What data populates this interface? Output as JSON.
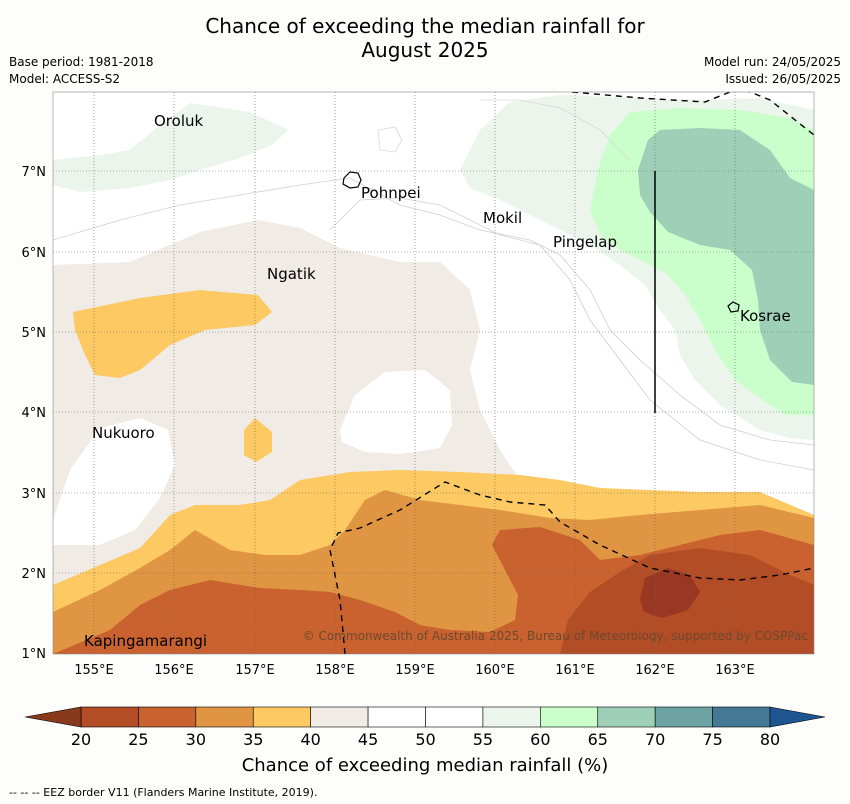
{
  "title": {
    "line1": "Chance of exceeding the median rainfall for",
    "line2": "August 2025"
  },
  "meta": {
    "base_period": "Base period: 1981-2018",
    "model": "Model: ACCESS-S2",
    "model_run": "Model run: 24/05/2025",
    "issued": "Issued: 26/05/2025"
  },
  "map": {
    "lon_labels": [
      "155°E",
      "156°E",
      "157°E",
      "158°E",
      "159°E",
      "160°E",
      "161°E",
      "162°E",
      "163°E"
    ],
    "lat_labels": [
      "7°N",
      "6°N",
      "5°N",
      "4°N",
      "3°N",
      "2°N",
      "1°N"
    ],
    "places": [
      {
        "name": "Oroluk"
      },
      {
        "name": "Pohnpei"
      },
      {
        "name": "Mokil"
      },
      {
        "name": "Pingelap"
      },
      {
        "name": "Ngatik"
      },
      {
        "name": "Kosrae"
      },
      {
        "name": "Nukuoro"
      },
      {
        "name": "Kapingamarangi"
      }
    ],
    "copyright": "© Commonwealth of Australia 2025, Bureau of Meteorology, supported by COSPPac",
    "eez_style": "dashed"
  },
  "colorbar": {
    "ticks": [
      "20",
      "25",
      "30",
      "35",
      "40",
      "45",
      "50",
      "55",
      "60",
      "65",
      "70",
      "75",
      "80"
    ],
    "colors": [
      "#b24d26",
      "#c9622f",
      "#e09542",
      "#fcc962",
      "#f1ebe6",
      "#ffffff",
      "#ffffff",
      "#ebf5eb",
      "#cafecb",
      "#9dd0b6",
      "#6da3a2",
      "#447996"
    ],
    "low_color": "#8a3a1c",
    "high_color": "#1c5590",
    "label": "Chance of exceeding median rainfall (%)"
  },
  "footnote": "--  --  -- EEZ border V11 (Flanders Marine Institute, 2019)."
}
